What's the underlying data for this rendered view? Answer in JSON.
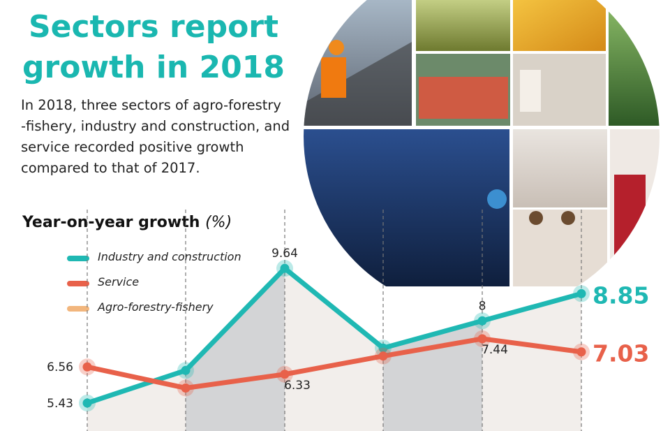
{
  "header": {
    "title_line1": "Sectors report",
    "title_line2": "growth in 2018"
  },
  "intro": {
    "lines": [
      "In 2018, three sectors of agro-forestry",
      "-fishery, industry and construction, and",
      "service recorded positive growth",
      "compared to that of 2017."
    ]
  },
  "colors": {
    "title": "#1ab7b0",
    "industry": "#1fb8b3",
    "service": "#e8614a",
    "agro": "#f2b67d",
    "band_light": "#f2eeeb",
    "band_dark": "#d3d4d6"
  },
  "chart_data": {
    "type": "line",
    "title": "Year-on-year growth",
    "unit": "(%)",
    "series": [
      {
        "name": "Industry and construction",
        "values": [
          5.43,
          6.45,
          9.64,
          7.15,
          8,
          8.85
        ]
      },
      {
        "name": "Service",
        "values": [
          6.56,
          5.9,
          6.33,
          6.9,
          7.44,
          7.03
        ]
      }
    ],
    "legend": [
      "Industry and construction",
      "Service",
      "Agro-forestry-fishery"
    ],
    "data_labels": [
      {
        "series": 0,
        "index": 0,
        "text": "5.43"
      },
      {
        "series": 0,
        "index": 2,
        "text": "9.64"
      },
      {
        "series": 0,
        "index": 4,
        "text": "8"
      },
      {
        "series": 0,
        "index": 5,
        "text": "8.85"
      },
      {
        "series": 1,
        "index": 0,
        "text": "6.56"
      },
      {
        "series": 1,
        "index": 2,
        "text": "6.33"
      },
      {
        "series": 1,
        "index": 4,
        "text": "7.44"
      },
      {
        "series": 1,
        "index": 5,
        "text": "7.03"
      }
    ],
    "grid": false,
    "legend_placement": "top-left"
  }
}
